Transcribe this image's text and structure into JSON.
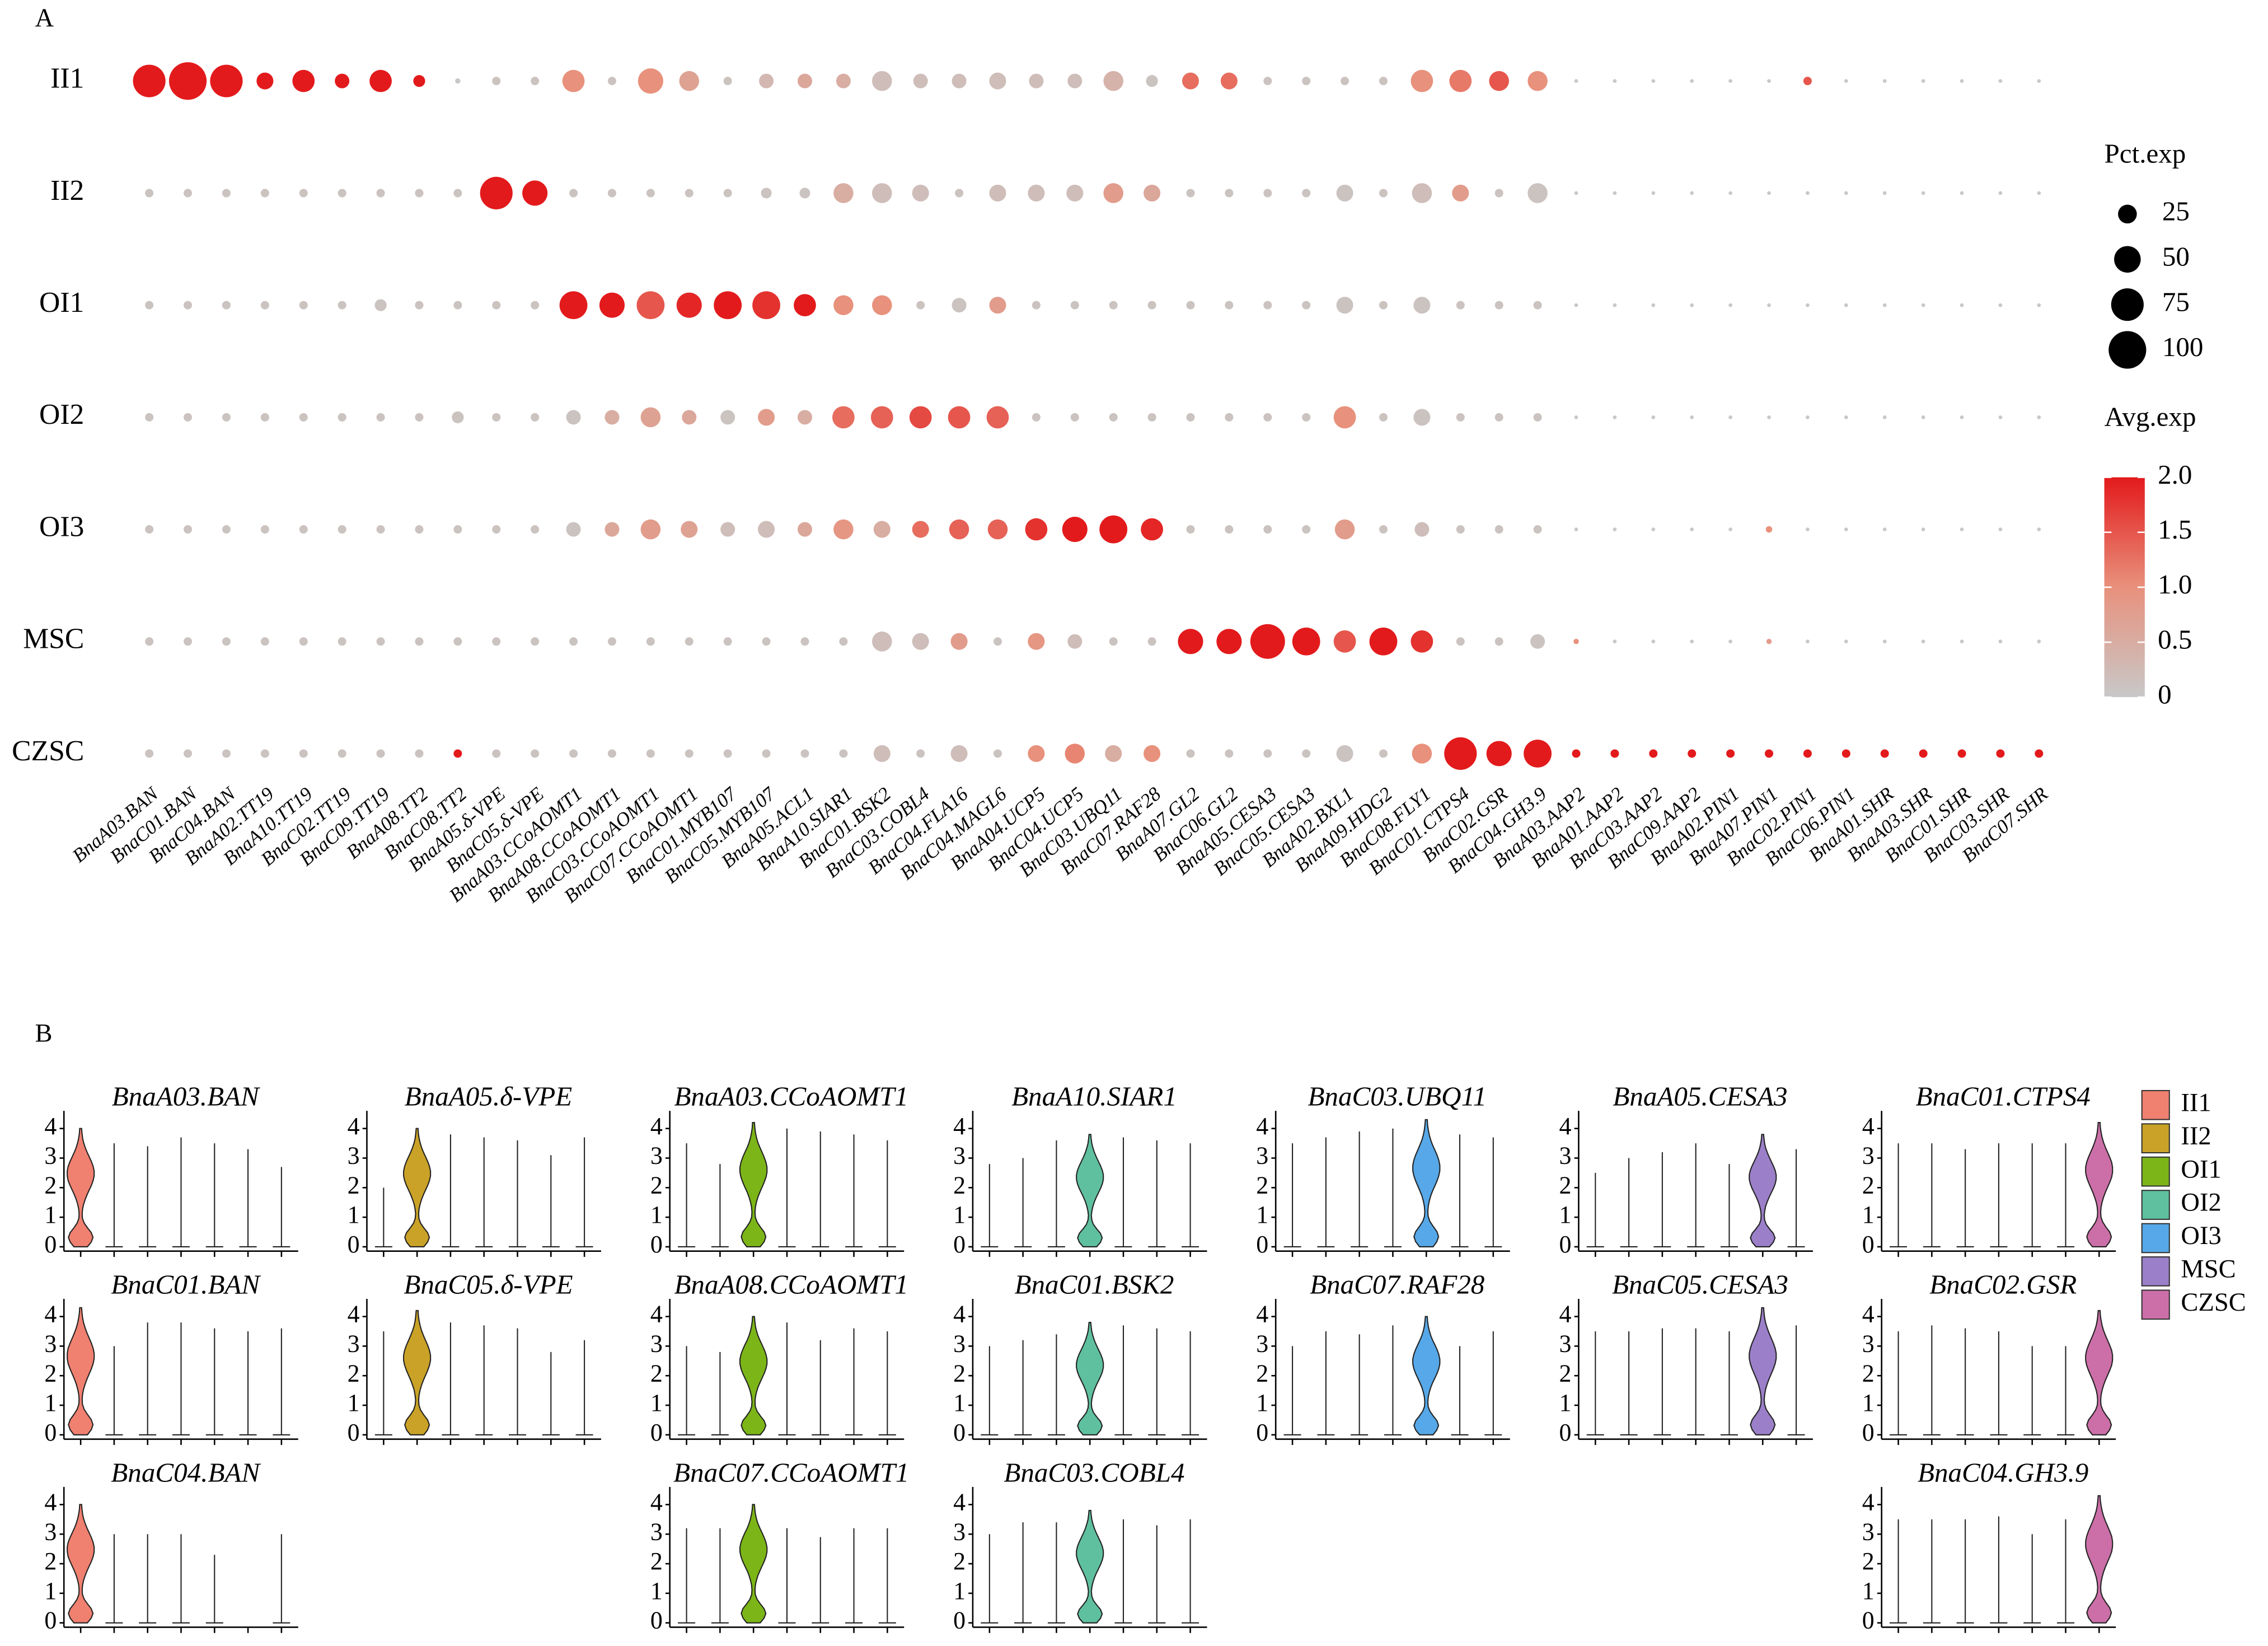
{
  "panel_labels": [
    "A",
    "B"
  ],
  "chart_data": [
    {
      "type": "dot",
      "rows": [
        "II1",
        "II2",
        "OI1",
        "OI2",
        "OI3",
        "MSC",
        "CZSC"
      ],
      "genes": [
        "BnaA03.BAN",
        "BnaC01.BAN",
        "BnaC04.BAN",
        "BnaA02.TT19",
        "BnaA10.TT19",
        "BnaC02.TT19",
        "BnaC09.TT19",
        "BnaA08.TT2",
        "BnaC08.TT2",
        "BnaA05.δ-VPE",
        "BnaC05.δ-VPE",
        "BnaA03.CCoAOMT1",
        "BnaA08.CCoAOMT1",
        "BnaC03.CCoAOMT1",
        "BnaC07.CCoAOMT1",
        "BnaC01.MYB107",
        "BnaC05.MYB107",
        "BnaA05.ACL1",
        "BnaA10.SIAR1",
        "BnaC01.BSK2",
        "BnaC03.COBL4",
        "BnaC04.FLA16",
        "BnaC04.MAGL6",
        "BnaA04.UCP5",
        "BnaC04.UCP5",
        "BnaC03.UBQ11",
        "BnaC07.RAF28",
        "BnaA07.GL2",
        "BnaC06.GL2",
        "BnaA05.CESA3",
        "BnaC05.CESA3",
        "BnaA02.BXL1",
        "BnaA09.HDG2",
        "BnaC08.FLY1",
        "BnaC01.CTPS4",
        "BnaC02.GSR",
        "BnaC04.GH3.9",
        "BnaA03.AAP2",
        "BnaA01.AAP2",
        "BnaC03.AAP2",
        "BnaC09.AAP2",
        "BnaA02.PIN1",
        "BnaA07.PIN1",
        "BnaC02.PIN1",
        "BnaC06.PIN1",
        "BnaA01.SHR",
        "BnaA03.SHR",
        "BnaC01.SHR",
        "BnaC03.SHR",
        "BnaC07.SHR"
      ],
      "pct": [
        [
          75,
          100,
          75,
          20,
          35,
          15,
          35,
          10,
          2,
          5,
          5,
          35,
          5,
          45,
          28,
          5,
          15,
          15,
          15,
          28,
          15,
          15,
          20,
          15,
          15,
          28,
          10,
          20,
          20,
          5,
          5,
          5,
          5,
          35,
          35,
          28,
          28,
          1,
          1,
          1,
          1,
          1,
          1,
          5,
          1,
          1,
          1,
          1,
          1,
          1
        ],
        [
          5,
          5,
          5,
          5,
          5,
          5,
          5,
          5,
          5,
          75,
          45,
          5,
          5,
          5,
          5,
          5,
          8,
          8,
          28,
          28,
          20,
          5,
          20,
          20,
          20,
          28,
          20,
          5,
          5,
          5,
          5,
          20,
          5,
          28,
          20,
          5,
          28,
          1,
          1,
          1,
          1,
          1,
          1,
          1,
          1,
          1,
          1,
          1,
          1,
          1
        ],
        [
          5,
          5,
          5,
          5,
          5,
          5,
          10,
          5,
          5,
          5,
          5,
          55,
          45,
          55,
          45,
          55,
          55,
          35,
          28,
          28,
          5,
          15,
          20,
          5,
          5,
          5,
          5,
          5,
          5,
          5,
          5,
          20,
          5,
          20,
          5,
          5,
          5,
          1,
          1,
          1,
          1,
          1,
          1,
          1,
          1,
          1,
          1,
          1,
          1,
          1
        ],
        [
          5,
          5,
          5,
          5,
          5,
          5,
          5,
          5,
          10,
          5,
          5,
          15,
          15,
          28,
          15,
          15,
          20,
          15,
          35,
          35,
          35,
          35,
          35,
          5,
          5,
          5,
          5,
          5,
          5,
          5,
          5,
          35,
          5,
          20,
          5,
          5,
          5,
          1,
          1,
          1,
          1,
          1,
          1,
          1,
          1,
          1,
          1,
          1,
          1,
          1
        ],
        [
          5,
          5,
          5,
          5,
          5,
          5,
          5,
          5,
          5,
          5,
          5,
          15,
          15,
          28,
          20,
          15,
          20,
          15,
          28,
          20,
          20,
          28,
          28,
          35,
          45,
          55,
          35,
          5,
          5,
          5,
          5,
          28,
          5,
          15,
          5,
          5,
          5,
          1,
          1,
          1,
          1,
          1,
          3,
          1,
          1,
          1,
          1,
          1,
          1,
          1
        ],
        [
          5,
          5,
          5,
          5,
          5,
          5,
          5,
          5,
          5,
          5,
          5,
          5,
          5,
          5,
          5,
          5,
          5,
          5,
          5,
          28,
          20,
          20,
          5,
          20,
          15,
          5,
          5,
          45,
          45,
          85,
          55,
          35,
          55,
          35,
          5,
          5,
          15,
          2,
          1,
          1,
          1,
          1,
          2,
          1,
          1,
          1,
          1,
          1,
          1,
          1
        ],
        [
          5,
          5,
          5,
          5,
          5,
          5,
          5,
          5,
          5,
          5,
          5,
          5,
          5,
          5,
          5,
          5,
          5,
          5,
          5,
          20,
          5,
          20,
          5,
          20,
          28,
          20,
          20,
          5,
          5,
          5,
          5,
          20,
          5,
          28,
          75,
          45,
          55,
          5,
          5,
          5,
          5,
          5,
          5,
          5,
          5,
          5,
          5,
          5,
          5,
          5
        ]
      ],
      "avg": [
        [
          2,
          2,
          2,
          2,
          2,
          2,
          2,
          2,
          0,
          0.1,
          0.1,
          1,
          0.1,
          1,
          0.7,
          0.1,
          0.3,
          0.6,
          0.5,
          0.2,
          0.2,
          0.2,
          0.2,
          0.2,
          0.2,
          0.4,
          0.1,
          1.3,
          1.3,
          0.1,
          0.1,
          0.1,
          0.1,
          1,
          1.2,
          1.5,
          1,
          0,
          0,
          0,
          0,
          0,
          0,
          1.5,
          0,
          0,
          0,
          0,
          0,
          0
        ],
        [
          0.1,
          0.1,
          0.1,
          0.1,
          0.1,
          0.1,
          0.1,
          0.1,
          0.1,
          2,
          2,
          0.1,
          0.1,
          0.1,
          0.1,
          0.1,
          0.1,
          0.1,
          0.5,
          0.2,
          0.2,
          0.1,
          0.2,
          0.2,
          0.2,
          0.8,
          0.6,
          0.1,
          0.1,
          0.1,
          0.1,
          0.1,
          0.1,
          0.2,
          0.8,
          0.1,
          0.1,
          0,
          0,
          0,
          0,
          0,
          0,
          0,
          0,
          0,
          0,
          0,
          0,
          0
        ],
        [
          0.1,
          0.1,
          0.1,
          0.1,
          0.1,
          0.1,
          0.1,
          0.1,
          0.1,
          0.1,
          0.1,
          2,
          2,
          1.5,
          1.9,
          2,
          1.8,
          2,
          1,
          1,
          0.1,
          0.1,
          0.8,
          0.1,
          0.1,
          0.1,
          0.1,
          0.1,
          0.1,
          0.1,
          0.1,
          0.1,
          0.1,
          0.1,
          0.1,
          0.1,
          0.1,
          0,
          0,
          0,
          0,
          0,
          0,
          0,
          0,
          0,
          0,
          0,
          0,
          0
        ],
        [
          0.1,
          0.1,
          0.1,
          0.1,
          0.1,
          0.1,
          0.1,
          0.1,
          0.1,
          0.1,
          0.1,
          0.1,
          0.5,
          0.7,
          0.6,
          0.1,
          0.8,
          0.5,
          1.3,
          1.4,
          1.6,
          1.5,
          1.4,
          0.1,
          0.1,
          0.1,
          0.1,
          0.1,
          0.1,
          0.1,
          0.1,
          1,
          0.1,
          0.1,
          0.1,
          0.1,
          0.1,
          0,
          0,
          0,
          0,
          0,
          0,
          0,
          0,
          0,
          0,
          0,
          0,
          0
        ],
        [
          0.1,
          0.1,
          0.1,
          0.1,
          0.1,
          0.1,
          0.1,
          0.1,
          0.1,
          0.1,
          0.1,
          0.1,
          0.6,
          0.8,
          0.7,
          0.2,
          0.2,
          0.6,
          0.9,
          0.5,
          1.3,
          1.4,
          1.4,
          1.8,
          2,
          2,
          1.9,
          0.1,
          0.1,
          0.1,
          0.1,
          0.8,
          0.1,
          0.2,
          0.1,
          0.1,
          0.1,
          0,
          0,
          0,
          0,
          0,
          1,
          0,
          0,
          0,
          0,
          0,
          0,
          0
        ],
        [
          0.1,
          0.1,
          0.1,
          0.1,
          0.1,
          0.1,
          0.1,
          0.1,
          0.1,
          0.1,
          0.1,
          0.1,
          0.1,
          0.1,
          0.1,
          0.1,
          0.1,
          0.1,
          0.1,
          0.2,
          0.2,
          0.8,
          0.1,
          0.9,
          0.2,
          0.1,
          0.1,
          2,
          2,
          2,
          2,
          1.5,
          2,
          1.8,
          0.1,
          0.1,
          0.1,
          1,
          0,
          0,
          0,
          0,
          0.8,
          0,
          0,
          0,
          0,
          0,
          0,
          0
        ],
        [
          0.1,
          0.1,
          0.1,
          0.1,
          0.1,
          0.1,
          0.1,
          0.1,
          2,
          0.1,
          0.1,
          0.1,
          0.1,
          0.1,
          0.1,
          0.1,
          0.1,
          0.1,
          0.1,
          0.2,
          0.1,
          0.2,
          0.1,
          1,
          1.1,
          0.5,
          1,
          0.1,
          0.1,
          0.1,
          0.1,
          0.1,
          0.1,
          1,
          2,
          2,
          2,
          2,
          2,
          2,
          2,
          2,
          2,
          2,
          2,
          2,
          2,
          2,
          2,
          2
        ]
      ],
      "size_title": "Pct.exp",
      "size_lim": [
        0,
        100
      ],
      "size_ticks": [
        25,
        50,
        75,
        100
      ],
      "color_title": "Avg.exp",
      "color_lim": [
        0,
        2
      ],
      "color_ticks": [
        0,
        0.5,
        {
          "value": 1,
          "label": "1.0"
        },
        1.5,
        {
          "value": 2,
          "label": "2.0"
        }
      ],
      "colors": [
        "#c8c8c8",
        "#e8917c",
        "#e31a1c"
      ]
    },
    {
      "type": "violin",
      "clusters": [
        "II1",
        "II2",
        "OI1",
        "OI2",
        "OI3",
        "MSC",
        "CZSC"
      ],
      "colors": [
        "#f08070",
        "#c9a227",
        "#7cb518",
        "#5fc0a0",
        "#56a8e8",
        "#9b7fc8",
        "#cc6fa8"
      ],
      "ylim": [
        0,
        4.5
      ],
      "yticks": [
        0,
        1,
        2,
        3,
        4
      ],
      "panels": [
        [
          {
            "gene": "BnaA03.BAN",
            "max": [
              4.0,
              3.5,
              3.4,
              3.7,
              3.5,
              3.3,
              2.7
            ]
          },
          {
            "gene": "BnaC01.BAN",
            "max": [
              4.3,
              3.0,
              3.8,
              3.8,
              3.6,
              3.5,
              3.6
            ]
          },
          {
            "gene": "BnaC04.BAN",
            "max": [
              4.0,
              3.0,
              3.0,
              3.0,
              2.3,
              null,
              3.0
            ]
          }
        ],
        [
          {
            "gene": "BnaA05.δ-VPE",
            "max": [
              2.0,
              4.0,
              3.8,
              3.7,
              3.6,
              3.1,
              3.7
            ]
          },
          {
            "gene": "BnaC05.δ-VPE",
            "max": [
              3.5,
              4.2,
              3.8,
              3.7,
              3.6,
              2.8,
              3.2
            ]
          }
        ],
        [
          {
            "gene": "BnaA03.CCoAOMT1",
            "max": [
              3.5,
              2.8,
              4.2,
              4.0,
              3.9,
              3.8,
              3.6
            ]
          },
          {
            "gene": "BnaA08.CCoAOMT1",
            "max": [
              3.0,
              2.8,
              4.0,
              3.8,
              3.2,
              3.6,
              3.5
            ]
          },
          {
            "gene": "BnaC07.CCoAOMT1",
            "max": [
              3.2,
              3.2,
              4.0,
              3.2,
              2.9,
              3.2,
              3.2
            ]
          }
        ],
        [
          {
            "gene": "BnaA10.SIAR1",
            "max": [
              2.8,
              3.0,
              3.6,
              3.8,
              3.7,
              3.6,
              3.5
            ]
          },
          {
            "gene": "BnaC01.BSK2",
            "max": [
              3.0,
              3.2,
              3.4,
              3.8,
              3.7,
              3.6,
              3.5
            ]
          },
          {
            "gene": "BnaC03.COBL4",
            "max": [
              3.0,
              3.4,
              3.4,
              3.8,
              3.5,
              3.3,
              3.5
            ]
          }
        ],
        [
          {
            "gene": "BnaC03.UBQ11",
            "max": [
              3.5,
              3.7,
              3.9,
              4.0,
              4.3,
              3.8,
              3.7
            ]
          },
          {
            "gene": "BnaC07.RAF28",
            "max": [
              3.0,
              3.5,
              3.4,
              3.7,
              4.0,
              3.0,
              3.5
            ]
          }
        ],
        [
          {
            "gene": "BnaA05.CESA3",
            "max": [
              2.5,
              3.0,
              3.2,
              3.5,
              2.8,
              3.8,
              3.3
            ]
          },
          {
            "gene": "BnaC05.CESA3",
            "max": [
              3.5,
              3.5,
              3.6,
              3.6,
              3.5,
              4.3,
              3.7
            ]
          }
        ],
        [
          {
            "gene": "BnaC01.CTPS4",
            "max": [
              3.5,
              3.5,
              3.3,
              3.5,
              3.5,
              3.5,
              4.2
            ]
          },
          {
            "gene": "BnaC02.GSR",
            "max": [
              3.5,
              3.7,
              3.6,
              3.5,
              3.0,
              3.0,
              4.2
            ]
          },
          {
            "gene": "BnaC04.GH3.9",
            "max": [
              3.5,
              3.5,
              3.5,
              3.6,
              3.0,
              3.5,
              4.3
            ]
          }
        ]
      ]
    }
  ]
}
